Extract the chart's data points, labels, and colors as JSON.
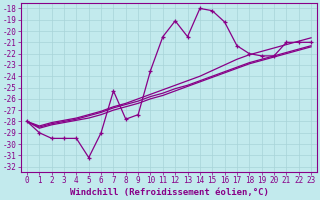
{
  "xlabel": "Windchill (Refroidissement éolien,°C)",
  "background_color": "#c2eaed",
  "grid_color": "#a8d4d8",
  "line_color": "#880088",
  "x": [
    0,
    1,
    2,
    3,
    4,
    5,
    6,
    7,
    8,
    9,
    10,
    11,
    12,
    13,
    14,
    15,
    16,
    17,
    18,
    19,
    20,
    21,
    22,
    23
  ],
  "main_series": [
    -28.0,
    -29.0,
    -29.5,
    -29.5,
    -29.5,
    -31.2,
    -29.0,
    -25.3,
    -27.8,
    -27.4,
    -23.5,
    -20.5,
    -19.1,
    -20.5,
    -18.0,
    -18.2,
    -19.2,
    -21.3,
    -22.0,
    -22.2,
    -22.2,
    -21.0,
    -21.0,
    -21.0
  ],
  "trend1": [
    -28.0,
    -28.5,
    -28.2,
    -28.0,
    -27.8,
    -27.5,
    -27.2,
    -26.8,
    -26.5,
    -26.2,
    -25.8,
    -25.5,
    -25.1,
    -24.8,
    -24.4,
    -24.0,
    -23.6,
    -23.2,
    -22.8,
    -22.5,
    -22.2,
    -21.9,
    -21.6,
    -21.3
  ],
  "trend2": [
    -28.0,
    -28.6,
    -28.3,
    -28.1,
    -27.9,
    -27.7,
    -27.4,
    -27.0,
    -26.7,
    -26.4,
    -26.0,
    -25.7,
    -25.3,
    -24.9,
    -24.5,
    -24.1,
    -23.7,
    -23.3,
    -22.9,
    -22.6,
    -22.3,
    -22.0,
    -21.7,
    -21.4
  ],
  "trend3": [
    -28.0,
    -28.4,
    -28.1,
    -27.9,
    -27.7,
    -27.4,
    -27.1,
    -26.7,
    -26.4,
    -26.0,
    -25.6,
    -25.2,
    -24.8,
    -24.4,
    -24.0,
    -23.5,
    -23.0,
    -22.5,
    -22.1,
    -21.8,
    -21.5,
    -21.2,
    -20.9,
    -20.6
  ],
  "ylim": [
    -32.5,
    -17.5
  ],
  "xlim": [
    -0.5,
    23.5
  ],
  "yticks": [
    -32,
    -31,
    -30,
    -29,
    -28,
    -27,
    -26,
    -25,
    -24,
    -23,
    -22,
    -21,
    -20,
    -19,
    -18
  ],
  "xticks": [
    0,
    1,
    2,
    3,
    4,
    5,
    6,
    7,
    8,
    9,
    10,
    11,
    12,
    13,
    14,
    15,
    16,
    17,
    18,
    19,
    20,
    21,
    22,
    23
  ],
  "tick_fontsize": 5.5,
  "label_fontsize": 6.5
}
